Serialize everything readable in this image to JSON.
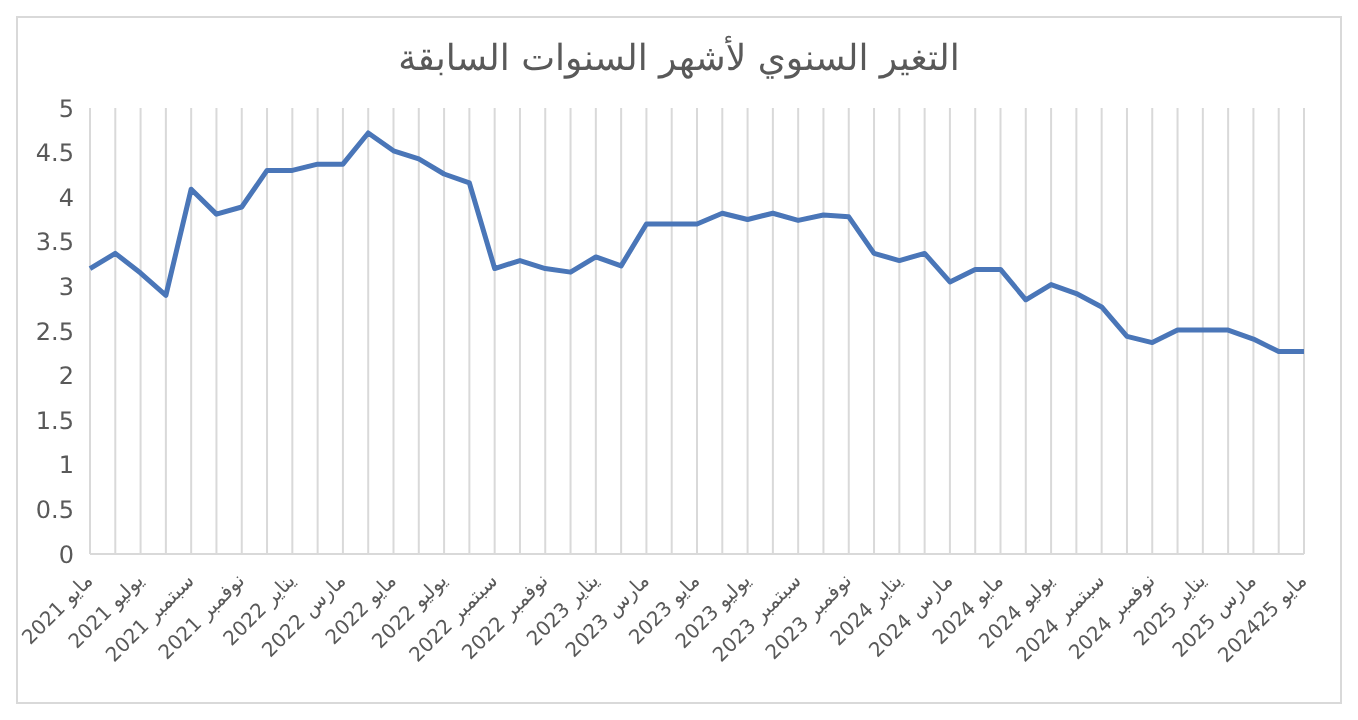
{
  "chart_data": {
    "type": "line",
    "title": "التغير السنوي لأشهر السنوات السابقة",
    "categories": [
      "مايو 2021",
      null,
      "يوليو 2021",
      null,
      "سبتمبر 2021",
      null,
      "2021 نوفمبر",
      null,
      "يناير 2022",
      null,
      "مارس 2022",
      null,
      "مايو 2022",
      null,
      "يوليو 2022",
      null,
      "سبتمبر 2022",
      null,
      "2022 نوفمبر",
      null,
      "يناير 2023",
      null,
      "مارس 2023",
      null,
      "مايو 2023",
      null,
      "يوليو 2023",
      null,
      "سبتمبر 2023",
      null,
      "نوفمبر 2023",
      null,
      "يناير 2024",
      null,
      "مارس 2024",
      null,
      "مايو 2024",
      null,
      "يوليو 2024",
      null,
      "سبتمبر 2024",
      null,
      "نوفمبر 2024",
      null,
      "يناير 2025",
      null,
      "مارس 2025",
      null,
      "مايو 202425"
    ],
    "series": [
      {
        "color": "#4a76b8",
        "values": [
          3.2,
          3.37,
          3.15,
          2.9,
          4.09,
          3.81,
          3.89,
          4.3,
          4.3,
          4.37,
          4.37,
          4.72,
          4.52,
          4.43,
          4.26,
          4.16,
          3.2,
          3.29,
          3.2,
          3.16,
          3.33,
          3.23,
          3.7,
          3.7,
          3.7,
          3.82,
          3.75,
          3.82,
          3.74,
          3.8,
          3.78,
          3.37,
          3.29,
          3.37,
          3.05,
          3.19,
          3.19,
          2.85,
          3.02,
          2.92,
          2.77,
          2.44,
          2.37,
          2.51,
          2.51,
          2.51,
          2.41,
          2.27,
          2.27
        ]
      }
    ],
    "ylim": [
      0,
      5
    ],
    "yticks": [
      0,
      0.5,
      1,
      1.5,
      2,
      2.5,
      3,
      3.5,
      4,
      4.5,
      5
    ],
    "grid": "x",
    "legend": false,
    "marker": "none",
    "line_style": "solid"
  }
}
